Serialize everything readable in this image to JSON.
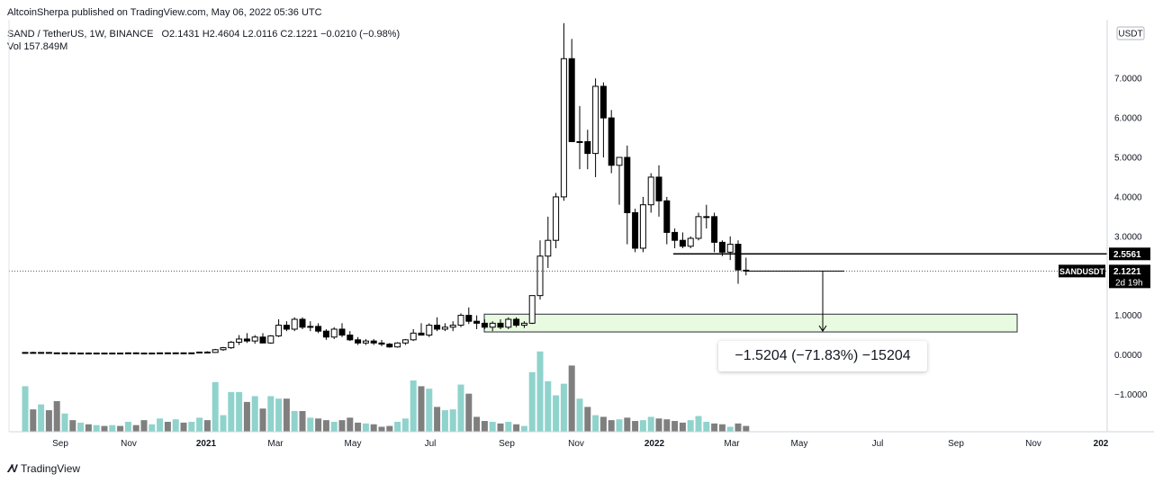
{
  "header": {
    "published": "AltcoinSherpa published on TradingView.com, May 06, 2022 05:36 UTC",
    "symbol": "SAND / TetherUS, 1W, BINANCE",
    "open": "O2.1431",
    "high": "H2.4604",
    "low": "L2.0116",
    "close": "C2.1221",
    "change": "−0.0210 (−0.98%)",
    "volume_label": "Vol",
    "volume_value": "157.849M"
  },
  "measure": {
    "label": "−1.5204 (−71.83%) −15204",
    "from": 2.1221,
    "to": 0.602
  },
  "price_axis": {
    "currency": "USDT",
    "ticks": [
      "7.0000",
      "6.0000",
      "5.0000",
      "4.0000",
      "3.0000",
      "2.0000",
      "1.0000",
      "0.0000",
      "−1.0000"
    ],
    "tick_values": [
      7,
      6,
      5,
      4,
      3,
      2,
      1,
      0,
      -1
    ],
    "level_label": "2.5561",
    "level_value": 2.5561,
    "symbol_label": "SANDUSDT",
    "last_price": "2.1221",
    "countdown": "2d 19h"
  },
  "time_axis": [
    {
      "label": "Sep",
      "bold": false
    },
    {
      "label": "Nov",
      "bold": false
    },
    {
      "label": "2021",
      "bold": true
    },
    {
      "label": "Mar",
      "bold": false
    },
    {
      "label": "May",
      "bold": false
    },
    {
      "label": "Jul",
      "bold": false
    },
    {
      "label": "Sep",
      "bold": false
    },
    {
      "label": "Nov",
      "bold": false
    },
    {
      "label": "2022",
      "bold": true
    },
    {
      "label": "Mar",
      "bold": false
    },
    {
      "label": "May",
      "bold": false
    },
    {
      "label": "Jul",
      "bold": false
    },
    {
      "label": "Sep",
      "bold": false
    },
    {
      "label": "Nov",
      "bold": false
    },
    {
      "label": "202",
      "bold": true
    }
  ],
  "zone": {
    "low": 0.58,
    "high": 1.03
  },
  "footer": {
    "brand": "TradingView"
  },
  "colors": {
    "bull": "#ffffff",
    "bear": "#000000",
    "vol_up": "#8fd3cc",
    "vol_down": "#7f7f7f",
    "zone_fill": "#e8fbe0",
    "zone_border": "#2a2e39"
  },
  "chart_data": {
    "type": "candlestick",
    "interval": "1W",
    "ylim": [
      -1.9,
      8.2
    ],
    "volume_unit": "relative",
    "candles": [
      {
        "o": 0.05,
        "h": 0.07,
        "l": 0.03,
        "c": 0.06,
        "v": 0.55
      },
      {
        "o": 0.06,
        "h": 0.08,
        "l": 0.04,
        "c": 0.05,
        "v": 0.27
      },
      {
        "o": 0.05,
        "h": 0.07,
        "l": 0.04,
        "c": 0.06,
        "v": 0.33
      },
      {
        "o": 0.06,
        "h": 0.07,
        "l": 0.04,
        "c": 0.05,
        "v": 0.26
      },
      {
        "o": 0.05,
        "h": 0.06,
        "l": 0.03,
        "c": 0.04,
        "v": 0.37
      },
      {
        "o": 0.04,
        "h": 0.06,
        "l": 0.03,
        "c": 0.05,
        "v": 0.22
      },
      {
        "o": 0.05,
        "h": 0.06,
        "l": 0.04,
        "c": 0.04,
        "v": 0.14
      },
      {
        "o": 0.04,
        "h": 0.05,
        "l": 0.03,
        "c": 0.045,
        "v": 0.11
      },
      {
        "o": 0.045,
        "h": 0.06,
        "l": 0.03,
        "c": 0.04,
        "v": 0.09
      },
      {
        "o": 0.04,
        "h": 0.05,
        "l": 0.03,
        "c": 0.045,
        "v": 0.08
      },
      {
        "o": 0.045,
        "h": 0.055,
        "l": 0.035,
        "c": 0.04,
        "v": 0.07
      },
      {
        "o": 0.04,
        "h": 0.05,
        "l": 0.03,
        "c": 0.045,
        "v": 0.08
      },
      {
        "o": 0.045,
        "h": 0.055,
        "l": 0.035,
        "c": 0.04,
        "v": 0.07
      },
      {
        "o": 0.04,
        "h": 0.06,
        "l": 0.035,
        "c": 0.05,
        "v": 0.12
      },
      {
        "o": 0.05,
        "h": 0.06,
        "l": 0.04,
        "c": 0.045,
        "v": 0.08
      },
      {
        "o": 0.045,
        "h": 0.055,
        "l": 0.035,
        "c": 0.04,
        "v": 0.14
      },
      {
        "o": 0.04,
        "h": 0.05,
        "l": 0.035,
        "c": 0.045,
        "v": 0.09
      },
      {
        "o": 0.045,
        "h": 0.055,
        "l": 0.04,
        "c": 0.05,
        "v": 0.16
      },
      {
        "o": 0.05,
        "h": 0.06,
        "l": 0.04,
        "c": 0.045,
        "v": 0.12
      },
      {
        "o": 0.045,
        "h": 0.055,
        "l": 0.035,
        "c": 0.05,
        "v": 0.15
      },
      {
        "o": 0.05,
        "h": 0.06,
        "l": 0.04,
        "c": 0.045,
        "v": 0.11
      },
      {
        "o": 0.045,
        "h": 0.055,
        "l": 0.04,
        "c": 0.05,
        "v": 0.12
      },
      {
        "o": 0.05,
        "h": 0.08,
        "l": 0.045,
        "c": 0.07,
        "v": 0.17
      },
      {
        "o": 0.07,
        "h": 0.09,
        "l": 0.06,
        "c": 0.06,
        "v": 0.14
      },
      {
        "o": 0.06,
        "h": 0.15,
        "l": 0.05,
        "c": 0.13,
        "v": 0.6
      },
      {
        "o": 0.13,
        "h": 0.2,
        "l": 0.1,
        "c": 0.18,
        "v": 0.2
      },
      {
        "o": 0.18,
        "h": 0.35,
        "l": 0.15,
        "c": 0.32,
        "v": 0.48
      },
      {
        "o": 0.32,
        "h": 0.5,
        "l": 0.25,
        "c": 0.4,
        "v": 0.48
      },
      {
        "o": 0.4,
        "h": 0.55,
        "l": 0.3,
        "c": 0.35,
        "v": 0.36
      },
      {
        "o": 0.35,
        "h": 0.5,
        "l": 0.28,
        "c": 0.45,
        "v": 0.43
      },
      {
        "o": 0.45,
        "h": 0.55,
        "l": 0.3,
        "c": 0.3,
        "v": 0.28
      },
      {
        "o": 0.3,
        "h": 0.5,
        "l": 0.28,
        "c": 0.48,
        "v": 0.43
      },
      {
        "o": 0.48,
        "h": 0.9,
        "l": 0.45,
        "c": 0.75,
        "v": 0.4
      },
      {
        "o": 0.75,
        "h": 0.85,
        "l": 0.6,
        "c": 0.65,
        "v": 0.4
      },
      {
        "o": 0.65,
        "h": 0.95,
        "l": 0.6,
        "c": 0.9,
        "v": 0.25
      },
      {
        "o": 0.9,
        "h": 0.95,
        "l": 0.65,
        "c": 0.7,
        "v": 0.25
      },
      {
        "o": 0.7,
        "h": 0.85,
        "l": 0.6,
        "c": 0.72,
        "v": 0.17
      },
      {
        "o": 0.72,
        "h": 0.8,
        "l": 0.55,
        "c": 0.6,
        "v": 0.16
      },
      {
        "o": 0.6,
        "h": 0.65,
        "l": 0.38,
        "c": 0.45,
        "v": 0.14
      },
      {
        "o": 0.45,
        "h": 0.7,
        "l": 0.4,
        "c": 0.65,
        "v": 0.12
      },
      {
        "o": 0.65,
        "h": 0.8,
        "l": 0.45,
        "c": 0.5,
        "v": 0.14
      },
      {
        "o": 0.5,
        "h": 0.6,
        "l": 0.35,
        "c": 0.38,
        "v": 0.17
      },
      {
        "o": 0.38,
        "h": 0.45,
        "l": 0.25,
        "c": 0.3,
        "v": 0.11
      },
      {
        "o": 0.3,
        "h": 0.4,
        "l": 0.25,
        "c": 0.35,
        "v": 0.1
      },
      {
        "o": 0.35,
        "h": 0.4,
        "l": 0.25,
        "c": 0.3,
        "v": 0.09
      },
      {
        "o": 0.3,
        "h": 0.38,
        "l": 0.22,
        "c": 0.27,
        "v": 0.06
      },
      {
        "o": 0.27,
        "h": 0.3,
        "l": 0.18,
        "c": 0.2,
        "v": 0.07
      },
      {
        "o": 0.2,
        "h": 0.32,
        "l": 0.18,
        "c": 0.3,
        "v": 0.12
      },
      {
        "o": 0.3,
        "h": 0.4,
        "l": 0.25,
        "c": 0.38,
        "v": 0.16
      },
      {
        "o": 0.38,
        "h": 0.65,
        "l": 0.35,
        "c": 0.55,
        "v": 0.62
      },
      {
        "o": 0.55,
        "h": 0.8,
        "l": 0.5,
        "c": 0.5,
        "v": 0.55
      },
      {
        "o": 0.5,
        "h": 0.8,
        "l": 0.45,
        "c": 0.75,
        "v": 0.52
      },
      {
        "o": 0.75,
        "h": 0.95,
        "l": 0.6,
        "c": 0.65,
        "v": 0.3
      },
      {
        "o": 0.65,
        "h": 0.8,
        "l": 0.6,
        "c": 0.7,
        "v": 0.26
      },
      {
        "o": 0.7,
        "h": 0.85,
        "l": 0.6,
        "c": 0.75,
        "v": 0.27
      },
      {
        "o": 0.75,
        "h": 1.05,
        "l": 0.7,
        "c": 1.0,
        "v": 0.57
      },
      {
        "o": 1.0,
        "h": 1.2,
        "l": 0.78,
        "c": 0.85,
        "v": 0.46
      },
      {
        "o": 0.85,
        "h": 1.0,
        "l": 0.65,
        "c": 0.8,
        "v": 0.18
      },
      {
        "o": 0.8,
        "h": 0.9,
        "l": 0.65,
        "c": 0.7,
        "v": 0.13
      },
      {
        "o": 0.7,
        "h": 0.85,
        "l": 0.6,
        "c": 0.8,
        "v": 0.12
      },
      {
        "o": 0.8,
        "h": 0.9,
        "l": 0.65,
        "c": 0.7,
        "v": 0.1
      },
      {
        "o": 0.7,
        "h": 0.95,
        "l": 0.65,
        "c": 0.9,
        "v": 0.12
      },
      {
        "o": 0.9,
        "h": 0.95,
        "l": 0.7,
        "c": 0.75,
        "v": 0.09
      },
      {
        "o": 0.75,
        "h": 0.85,
        "l": 0.68,
        "c": 0.8,
        "v": 0.07
      },
      {
        "o": 0.8,
        "h": 1.5,
        "l": 0.78,
        "c": 1.5,
        "v": 0.72
      },
      {
        "o": 1.5,
        "h": 2.9,
        "l": 1.4,
        "c": 2.5,
        "v": 0.97
      },
      {
        "o": 2.5,
        "h": 3.5,
        "l": 2.2,
        "c": 2.9,
        "v": 0.61
      },
      {
        "o": 2.9,
        "h": 4.1,
        "l": 2.7,
        "c": 4.0,
        "v": 0.44
      },
      {
        "o": 4.0,
        "h": 8.4,
        "l": 3.9,
        "c": 7.5,
        "v": 0.58
      },
      {
        "o": 7.5,
        "h": 8.0,
        "l": 5.4,
        "c": 5.4,
        "v": 0.8
      },
      {
        "o": 5.4,
        "h": 6.3,
        "l": 4.7,
        "c": 5.4,
        "v": 0.4
      },
      {
        "o": 5.4,
        "h": 5.7,
        "l": 4.7,
        "c": 5.1,
        "v": 0.3
      },
      {
        "o": 5.1,
        "h": 7.0,
        "l": 4.5,
        "c": 6.8,
        "v": 0.2
      },
      {
        "o": 6.8,
        "h": 6.9,
        "l": 5.0,
        "c": 6.0,
        "v": 0.18
      },
      {
        "o": 6.0,
        "h": 6.2,
        "l": 4.6,
        "c": 4.8,
        "v": 0.14
      },
      {
        "o": 4.8,
        "h": 5.0,
        "l": 3.8,
        "c": 5.0,
        "v": 0.15
      },
      {
        "o": 5.0,
        "h": 5.3,
        "l": 2.8,
        "c": 3.6,
        "v": 0.17
      },
      {
        "o": 3.6,
        "h": 3.7,
        "l": 2.6,
        "c": 2.7,
        "v": 0.13
      },
      {
        "o": 2.7,
        "h": 4.0,
        "l": 2.6,
        "c": 3.8,
        "v": 0.14
      },
      {
        "o": 3.8,
        "h": 4.6,
        "l": 3.6,
        "c": 4.5,
        "v": 0.18
      },
      {
        "o": 4.5,
        "h": 4.8,
        "l": 3.5,
        "c": 3.9,
        "v": 0.16
      },
      {
        "o": 3.9,
        "h": 4.0,
        "l": 2.8,
        "c": 3.1,
        "v": 0.15
      },
      {
        "o": 3.1,
        "h": 3.2,
        "l": 2.7,
        "c": 2.9,
        "v": 0.13
      },
      {
        "o": 2.9,
        "h": 3.1,
        "l": 2.7,
        "c": 2.75,
        "v": 0.11
      },
      {
        "o": 2.75,
        "h": 3.0,
        "l": 2.7,
        "c": 2.95,
        "v": 0.14
      },
      {
        "o": 2.95,
        "h": 3.6,
        "l": 2.9,
        "c": 3.5,
        "v": 0.19
      },
      {
        "o": 3.5,
        "h": 3.8,
        "l": 3.2,
        "c": 3.5,
        "v": 0.12
      },
      {
        "o": 3.5,
        "h": 3.6,
        "l": 2.6,
        "c": 2.85,
        "v": 0.1
      },
      {
        "o": 2.85,
        "h": 2.9,
        "l": 2.5,
        "c": 2.6,
        "v": 0.09
      },
      {
        "o": 2.6,
        "h": 3.0,
        "l": 2.4,
        "c": 2.8,
        "v": 0.06
      },
      {
        "o": 2.8,
        "h": 2.9,
        "l": 1.8,
        "c": 2.15,
        "v": 0.1
      },
      {
        "o": 2.1431,
        "h": 2.4604,
        "l": 2.0116,
        "c": 2.1221,
        "v": 0.07
      }
    ]
  }
}
